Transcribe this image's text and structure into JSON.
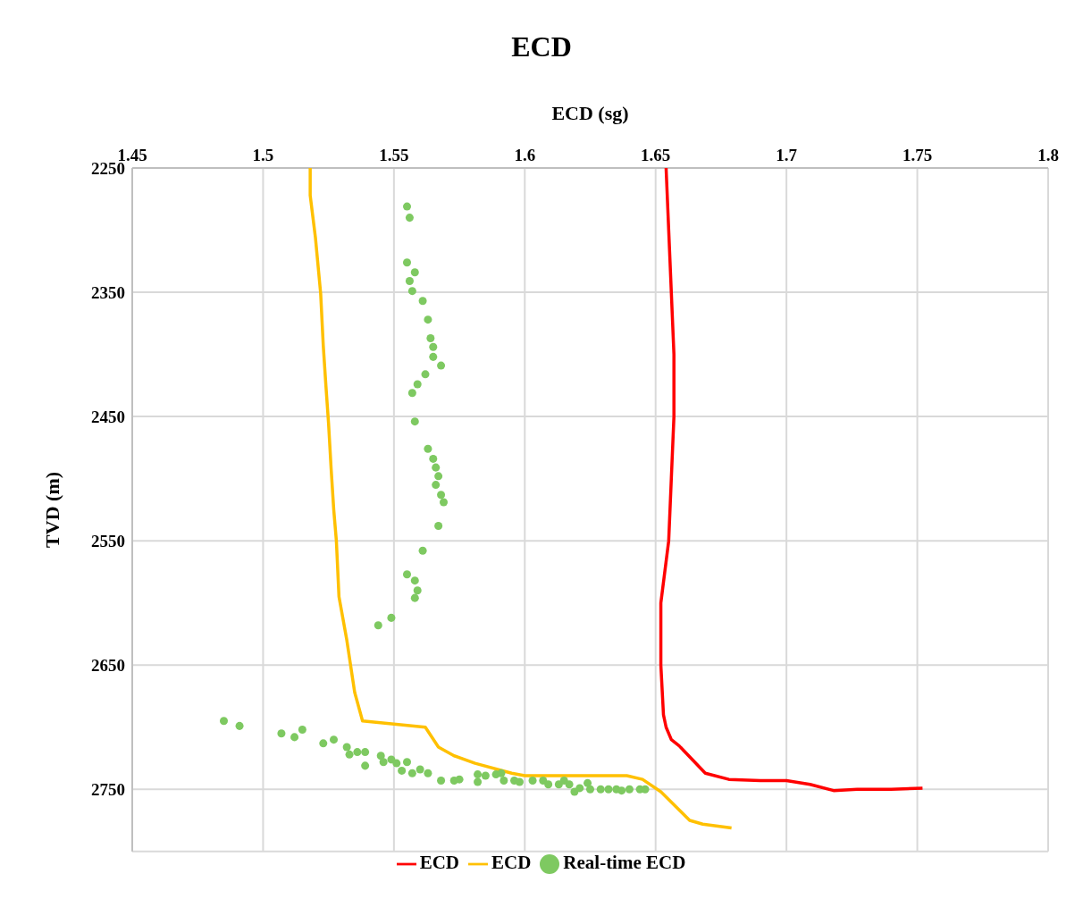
{
  "chart_data": {
    "type": "scatter",
    "title": "ECD",
    "xlabel": "ECD (sg)",
    "ylabel": "TVD (m)",
    "xlim": [
      1.45,
      1.8
    ],
    "xticks": [
      1.45,
      1.5,
      1.55,
      1.6,
      1.65,
      1.7,
      1.75,
      1.8
    ],
    "ylim": [
      2800,
      2250
    ],
    "yticks": [
      2250,
      2350,
      2450,
      2550,
      2650,
      2750
    ],
    "grid": true,
    "legend": "bottom",
    "series": [
      {
        "name": "ECD",
        "type": "line",
        "marker": "none",
        "color": "#ff0000",
        "x": [
          1.654,
          1.655,
          1.656,
          1.657,
          1.657,
          1.656,
          1.655,
          1.652,
          1.652,
          1.653,
          1.654,
          1.656,
          1.659,
          1.669,
          1.678,
          1.69,
          1.7,
          1.709,
          1.718,
          1.727,
          1.74,
          1.752
        ],
        "values": [
          2250,
          2300,
          2350,
          2400,
          2450,
          2500,
          2550,
          2600,
          2650,
          2690,
          2700,
          2710,
          2715,
          2737,
          2742,
          2743,
          2743,
          2746,
          2751,
          2750,
          2750,
          2749
        ]
      },
      {
        "name": "ECD",
        "type": "line",
        "marker": "none",
        "color": "#ffc000",
        "x": [
          1.518,
          1.518,
          1.52,
          1.522,
          1.523,
          1.524,
          1.525,
          1.526,
          1.527,
          1.528,
          1.529,
          1.532,
          1.535,
          1.538,
          1.562,
          1.567,
          1.573,
          1.581,
          1.595,
          1.6,
          1.639,
          1.645,
          1.652,
          1.663,
          1.668,
          1.679
        ],
        "values": [
          2250,
          2272,
          2306,
          2351,
          2393,
          2425,
          2455,
          2492,
          2525,
          2550,
          2595,
          2630,
          2672,
          2695,
          2700,
          2716,
          2723,
          2729,
          2737,
          2739,
          2739,
          2742,
          2752,
          2775,
          2778,
          2781
        ]
      },
      {
        "name": "Real-time ECD",
        "type": "scatter",
        "marker": "circle",
        "color": "#7ec961",
        "x": [
          1.555,
          1.556,
          1.555,
          1.558,
          1.556,
          1.557,
          1.561,
          1.563,
          1.564,
          1.565,
          1.565,
          1.568,
          1.562,
          1.559,
          1.557,
          1.558,
          1.563,
          1.565,
          1.566,
          1.567,
          1.566,
          1.568,
          1.569,
          1.567,
          1.561,
          1.555,
          1.558,
          1.559,
          1.558,
          1.549,
          1.544,
          1.485,
          1.491,
          1.507,
          1.512,
          1.515,
          1.523,
          1.527,
          1.532,
          1.533,
          1.536,
          1.539,
          1.539,
          1.545,
          1.546,
          1.549,
          1.551,
          1.553,
          1.555,
          1.557,
          1.56,
          1.563,
          1.568,
          1.573,
          1.575,
          1.582,
          1.582,
          1.585,
          1.589,
          1.591,
          1.592,
          1.596,
          1.598,
          1.603,
          1.607,
          1.609,
          1.613,
          1.615,
          1.617,
          1.619,
          1.621,
          1.624,
          1.625,
          1.629,
          1.632,
          1.635,
          1.637,
          1.64,
          1.644,
          1.646
        ],
        "values": [
          2281,
          2290,
          2326,
          2334,
          2341,
          2349,
          2357,
          2372,
          2387,
          2394,
          2402,
          2409,
          2416,
          2424,
          2431,
          2454,
          2476,
          2484,
          2491,
          2498,
          2505,
          2513,
          2519,
          2538,
          2558,
          2577,
          2582,
          2590,
          2596,
          2612,
          2618,
          2695,
          2699,
          2705,
          2708,
          2702,
          2713,
          2710,
          2716,
          2722,
          2720,
          2720,
          2731,
          2723,
          2728,
          2726,
          2729,
          2735,
          2728,
          2737,
          2734,
          2737,
          2743,
          2743,
          2742,
          2738,
          2744,
          2739,
          2738,
          2737,
          2743,
          2743,
          2744,
          2743,
          2743,
          2746,
          2746,
          2743,
          2746,
          2752,
          2749,
          2745,
          2750,
          2750,
          2750,
          2750,
          2751,
          2750,
          2750,
          2750
        ]
      }
    ]
  }
}
